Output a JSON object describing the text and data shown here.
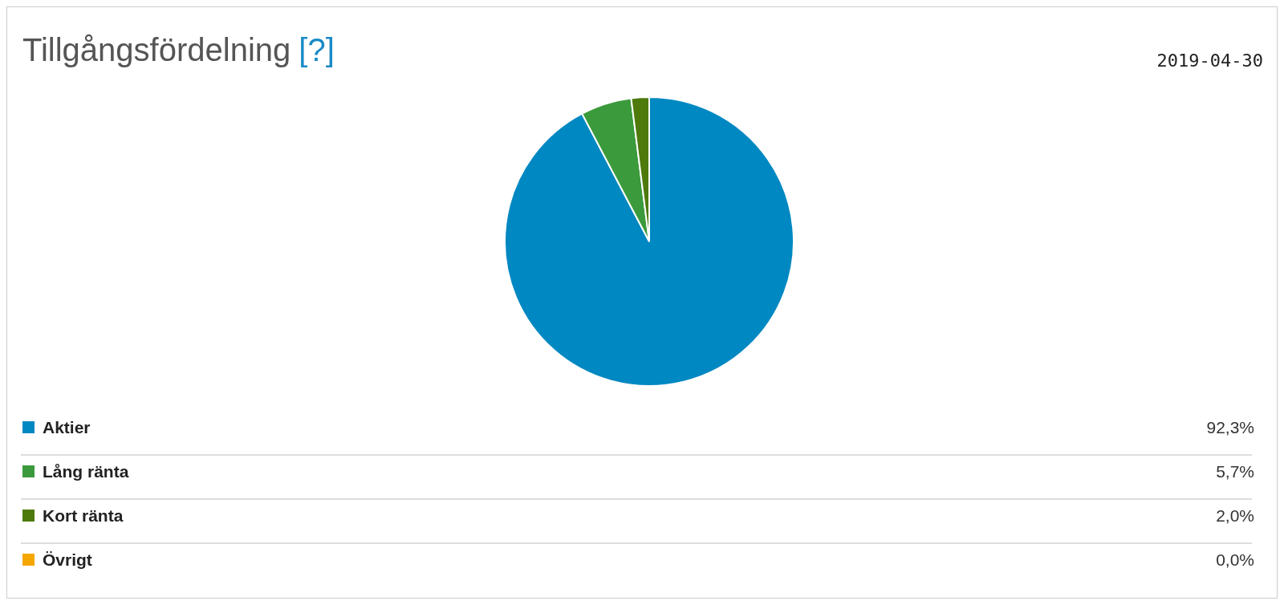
{
  "chart_data": {
    "type": "pie",
    "title": "Tillgångsfördelning",
    "subtitle": "2019-04-30",
    "annotations": [
      "[?]"
    ],
    "categories": [
      "Aktier",
      "Lång ränta",
      "Kort ränta",
      "Övrigt"
    ],
    "values": [
      92.3,
      5.7,
      2.0,
      0.0
    ],
    "colors": [
      "#0088c2",
      "#3b9a3b",
      "#4e7a0c",
      "#f5a700"
    ],
    "value_labels": [
      "92,3%",
      "5,7%",
      "2,0%",
      "0,0%"
    ],
    "legend": "bottom"
  }
}
